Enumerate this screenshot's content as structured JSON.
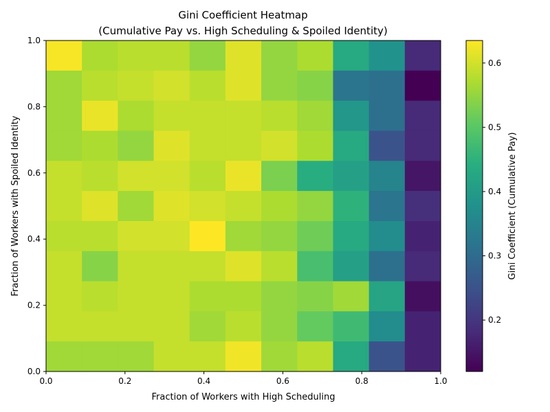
{
  "chart_data": {
    "type": "heatmap",
    "title": [
      "Gini Coefficient Heatmap",
      "(Cumulative Pay vs. High Scheduling & Spoiled Identity)"
    ],
    "xlabel": "Fraction of Workers with High Scheduling",
    "ylabel": "Fraction of Workers with Spoiled Identity",
    "colorbar_label": "Gini Coefficient (Cumulative Pay)",
    "colormap": "viridis",
    "xlim": [
      0,
      1
    ],
    "ylim": [
      0,
      1
    ],
    "color_range": [
      0.12,
      0.635
    ],
    "x_ticks": [
      0.0,
      0.2,
      0.4,
      0.6,
      0.8,
      1.0
    ],
    "y_ticks": [
      0.0,
      0.2,
      0.4,
      0.6,
      0.8,
      1.0
    ],
    "x_tick_labels": [
      "0.0",
      "0.2",
      "0.4",
      "0.6",
      "0.8",
      "1.0"
    ],
    "y_tick_labels": [
      "0.0",
      "0.2",
      "0.4",
      "0.6",
      "0.8",
      "1.0"
    ],
    "colorbar_ticks": [
      0.2,
      0.3,
      0.4,
      0.5,
      0.6
    ],
    "colorbar_tick_labels": [
      "0.2",
      "0.3",
      "0.4",
      "0.5",
      "0.6"
    ],
    "grid": false,
    "rows_order": "top row = highest Spoiled Identity fraction",
    "values": [
      [
        0.63,
        0.57,
        0.58,
        0.58,
        0.55,
        0.61,
        0.55,
        0.57,
        0.43,
        0.38,
        0.18
      ],
      [
        0.56,
        0.58,
        0.59,
        0.6,
        0.58,
        0.61,
        0.55,
        0.54,
        0.32,
        0.31,
        0.12
      ],
      [
        0.56,
        0.62,
        0.57,
        0.59,
        0.59,
        0.59,
        0.58,
        0.56,
        0.39,
        0.31,
        0.18
      ],
      [
        0.56,
        0.57,
        0.55,
        0.61,
        0.59,
        0.59,
        0.6,
        0.57,
        0.43,
        0.25,
        0.18
      ],
      [
        0.59,
        0.58,
        0.6,
        0.6,
        0.58,
        0.62,
        0.53,
        0.44,
        0.41,
        0.35,
        0.15
      ],
      [
        0.59,
        0.61,
        0.56,
        0.61,
        0.6,
        0.59,
        0.57,
        0.55,
        0.45,
        0.32,
        0.19
      ],
      [
        0.58,
        0.58,
        0.6,
        0.6,
        0.635,
        0.56,
        0.55,
        0.52,
        0.43,
        0.37,
        0.17
      ],
      [
        0.59,
        0.54,
        0.59,
        0.59,
        0.59,
        0.61,
        0.58,
        0.48,
        0.41,
        0.31,
        0.18
      ],
      [
        0.59,
        0.58,
        0.59,
        0.59,
        0.57,
        0.57,
        0.55,
        0.54,
        0.56,
        0.42,
        0.14
      ],
      [
        0.59,
        0.59,
        0.59,
        0.59,
        0.56,
        0.58,
        0.55,
        0.51,
        0.47,
        0.37,
        0.17
      ],
      [
        0.56,
        0.56,
        0.56,
        0.59,
        0.59,
        0.625,
        0.56,
        0.58,
        0.43,
        0.25,
        0.17
      ]
    ]
  }
}
